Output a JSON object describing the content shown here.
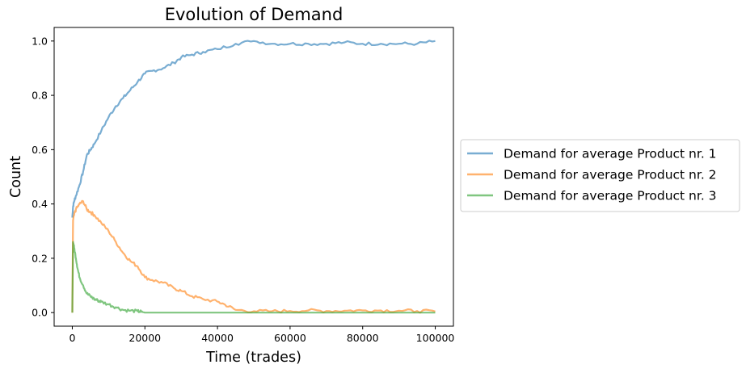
{
  "chart_data": {
    "type": "line",
    "title": "Evolution of Demand",
    "xlabel": "Time (trades)",
    "ylabel": "Count",
    "xlim": [
      -5000,
      105000
    ],
    "ylim": [
      -0.05,
      1.05
    ],
    "xticks": [
      0,
      20000,
      40000,
      60000,
      80000,
      100000
    ],
    "xtick_labels": [
      "0",
      "20000",
      "40000",
      "60000",
      "80000",
      "100000"
    ],
    "yticks": [
      0.0,
      0.2,
      0.4,
      0.6,
      0.8,
      1.0
    ],
    "ytick_labels": [
      "0.0",
      "0.2",
      "0.4",
      "0.6",
      "0.8",
      "1.0"
    ],
    "grid": false,
    "legend_position": "right-outside",
    "series": [
      {
        "name": "Demand for average Product nr. 1",
        "color": "#1f77b4",
        "x": [
          0,
          200,
          500,
          1000,
          2000,
          3000,
          4000,
          5000,
          6000,
          8000,
          10000,
          12000,
          14000,
          16000,
          18000,
          20000,
          22000,
          25000,
          28000,
          30000,
          33000,
          36000,
          40000,
          45000,
          50000,
          55000,
          60000,
          65000,
          70000,
          75000,
          80000,
          85000,
          90000,
          95000,
          100000
        ],
        "values": [
          0.35,
          0.39,
          0.41,
          0.43,
          0.47,
          0.52,
          0.58,
          0.6,
          0.62,
          0.67,
          0.72,
          0.76,
          0.79,
          0.82,
          0.85,
          0.88,
          0.89,
          0.9,
          0.92,
          0.94,
          0.95,
          0.96,
          0.97,
          0.99,
          1.0,
          0.99,
          0.99,
          0.99,
          0.99,
          0.995,
          0.99,
          0.99,
          0.99,
          0.99,
          1.0
        ]
      },
      {
        "name": "Demand for average Product nr. 2",
        "color": "#ff7f0e",
        "x": [
          0,
          200,
          500,
          1000,
          2000,
          3000,
          4000,
          5000,
          6000,
          8000,
          10000,
          12000,
          14000,
          16000,
          18000,
          20000,
          22000,
          25000,
          28000,
          30000,
          33000,
          36000,
          40000,
          42000,
          45000,
          50000,
          55000,
          60000,
          65000,
          70000,
          75000,
          80000,
          85000,
          90000,
          95000,
          100000
        ],
        "values": [
          0.0,
          0.34,
          0.36,
          0.38,
          0.4,
          0.41,
          0.38,
          0.37,
          0.36,
          0.33,
          0.3,
          0.26,
          0.22,
          0.19,
          0.17,
          0.13,
          0.12,
          0.11,
          0.09,
          0.08,
          0.06,
          0.05,
          0.04,
          0.03,
          0.01,
          0.005,
          0.005,
          0.006,
          0.008,
          0.006,
          0.007,
          0.008,
          0.008,
          0.007,
          0.006,
          0.004
        ]
      },
      {
        "name": "Demand for average Product nr. 3",
        "color": "#2ca02c",
        "x": [
          0,
          200,
          500,
          1000,
          1500,
          2000,
          3000,
          4000,
          5000,
          6000,
          7000,
          8000,
          10000,
          12000,
          14000,
          16000,
          18000,
          19000,
          20000,
          25000,
          30000,
          40000,
          50000,
          60000,
          70000,
          80000,
          90000,
          100000
        ],
        "values": [
          0.0,
          0.26,
          0.24,
          0.2,
          0.16,
          0.13,
          0.1,
          0.07,
          0.06,
          0.05,
          0.045,
          0.04,
          0.03,
          0.02,
          0.01,
          0.007,
          0.005,
          0.003,
          0.0,
          0.0,
          0.0,
          0.0,
          0.0,
          0.0,
          0.0,
          0.0,
          0.0,
          0.0
        ]
      }
    ]
  }
}
